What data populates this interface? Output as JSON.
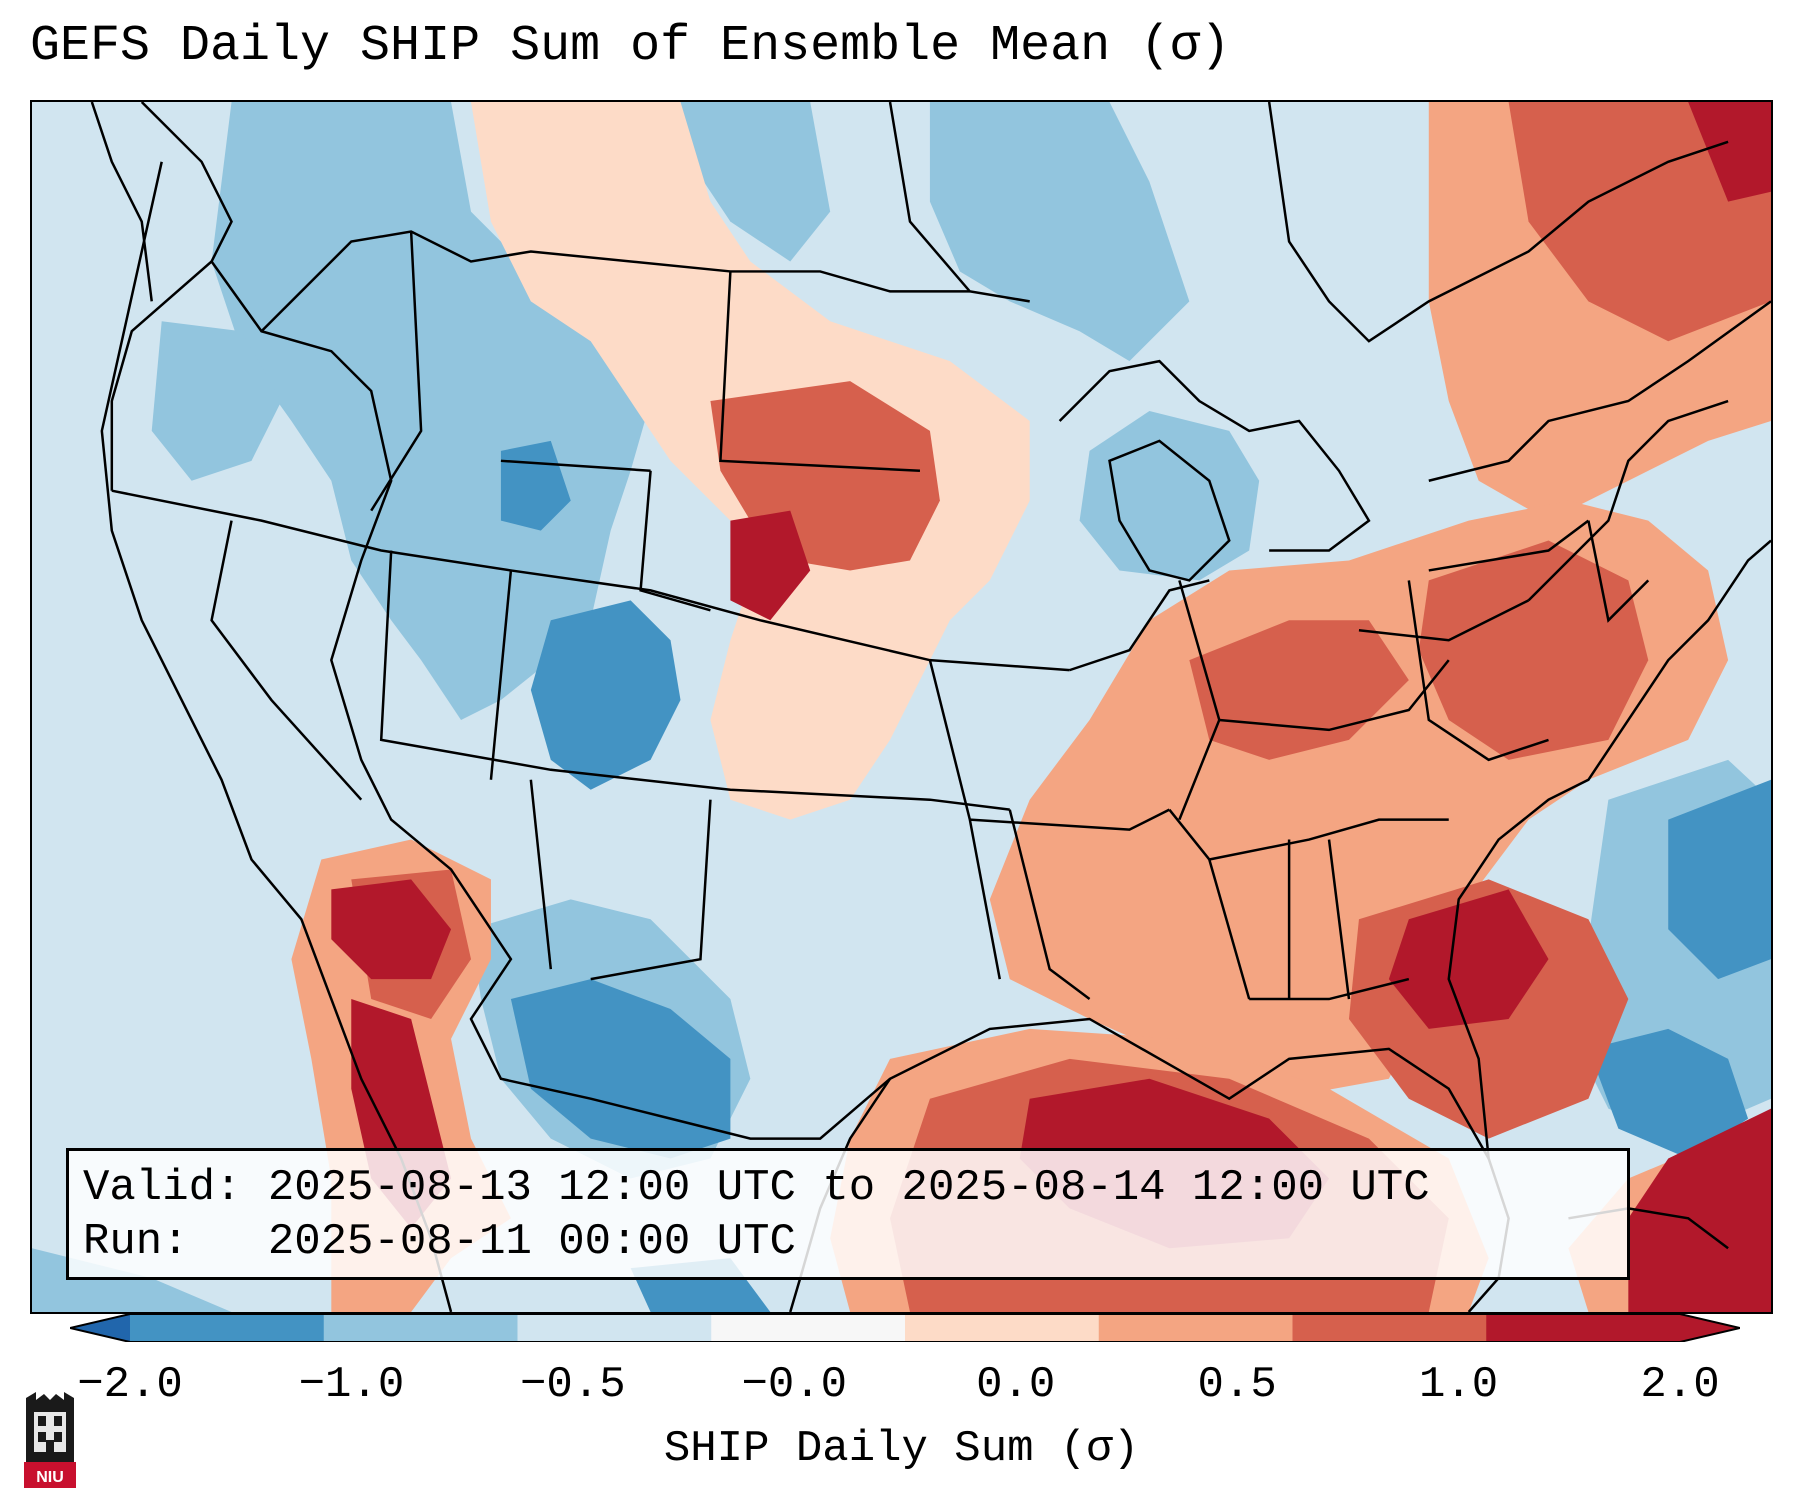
{
  "title": "GEFS Daily SHIP Sum of Ensemble Mean (σ)",
  "info": {
    "valid_line": "Valid: 2025-08-13 12:00 UTC to 2025-08-14 12:00 UTC",
    "run_line": "Run:   2025-08-11 00:00 UTC"
  },
  "colorbar": {
    "label": "SHIP Daily Sum (σ)",
    "ticks": [
      "−2.0",
      "−1.0",
      "−0.5",
      "−0.0",
      "0.0",
      "0.5",
      "1.0",
      "2.0"
    ],
    "colors": [
      "#4393c3",
      "#92c5de",
      "#d1e5f0",
      "#f7f7f7",
      "#fddbc7",
      "#f4a582",
      "#d6604d",
      "#b2182b"
    ],
    "extend_low_color": "#2166ac",
    "extend_high_color": "#b2182b"
  },
  "logo": {
    "text": "NIU"
  }
}
